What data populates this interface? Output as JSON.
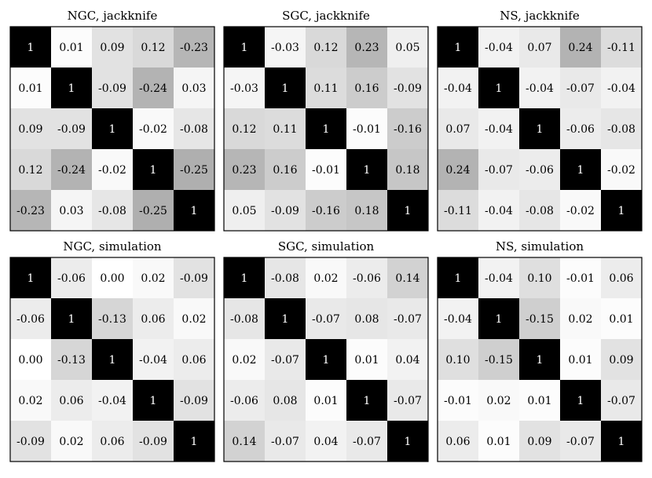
{
  "chart_data": [
    {
      "type": "heatmap",
      "title": "NGC, jackknife",
      "matrix": [
        [
          "1",
          "0.01",
          "0.09",
          "0.12",
          "-0.23"
        ],
        [
          "0.01",
          "1",
          "-0.09",
          "-0.24",
          "0.03"
        ],
        [
          "0.09",
          "-0.09",
          "1",
          "-0.02",
          "-0.08"
        ],
        [
          "0.12",
          "-0.24",
          "-0.02",
          "1",
          "-0.25"
        ],
        [
          "-0.23",
          "0.03",
          "-0.08",
          "-0.25",
          "1"
        ]
      ]
    },
    {
      "type": "heatmap",
      "title": "SGC, jackknife",
      "matrix": [
        [
          "1",
          "-0.03",
          "0.12",
          "0.23",
          "0.05"
        ],
        [
          "-0.03",
          "1",
          "0.11",
          "0.16",
          "-0.09"
        ],
        [
          "0.12",
          "0.11",
          "1",
          "-0.01",
          "-0.16"
        ],
        [
          "0.23",
          "0.16",
          "-0.01",
          "1",
          "0.18"
        ],
        [
          "0.05",
          "-0.09",
          "-0.16",
          "0.18",
          "1"
        ]
      ]
    },
    {
      "type": "heatmap",
      "title": "NS, jackknife",
      "matrix": [
        [
          "1",
          "-0.04",
          "0.07",
          "0.24",
          "-0.11"
        ],
        [
          "-0.04",
          "1",
          "-0.04",
          "-0.07",
          "-0.04"
        ],
        [
          "0.07",
          "-0.04",
          "1",
          "-0.06",
          "-0.08"
        ],
        [
          "0.24",
          "-0.07",
          "-0.06",
          "1",
          "-0.02"
        ],
        [
          "-0.11",
          "-0.04",
          "-0.08",
          "-0.02",
          "1"
        ]
      ]
    },
    {
      "type": "heatmap",
      "title": "NGC, simulation",
      "matrix": [
        [
          "1",
          "-0.06",
          "0.00",
          "0.02",
          "-0.09"
        ],
        [
          "-0.06",
          "1",
          "-0.13",
          "0.06",
          "0.02"
        ],
        [
          "0.00",
          "-0.13",
          "1",
          "-0.04",
          "0.06"
        ],
        [
          "0.02",
          "0.06",
          "-0.04",
          "1",
          "-0.09"
        ],
        [
          "-0.09",
          "0.02",
          "0.06",
          "-0.09",
          "1"
        ]
      ]
    },
    {
      "type": "heatmap",
      "title": "SGC, simulation",
      "matrix": [
        [
          "1",
          "-0.08",
          "0.02",
          "-0.06",
          "0.14"
        ],
        [
          "-0.08",
          "1",
          "-0.07",
          "0.08",
          "-0.07"
        ],
        [
          "0.02",
          "-0.07",
          "1",
          "0.01",
          "0.04"
        ],
        [
          "-0.06",
          "0.08",
          "0.01",
          "1",
          "-0.07"
        ],
        [
          "0.14",
          "-0.07",
          "0.04",
          "-0.07",
          "1"
        ]
      ]
    },
    {
      "type": "heatmap",
      "title": "NS, simulation",
      "matrix": [
        [
          "1",
          "-0.04",
          "0.10",
          "-0.01",
          "0.06"
        ],
        [
          "-0.04",
          "1",
          "-0.15",
          "0.02",
          "0.01"
        ],
        [
          "0.10",
          "-0.15",
          "1",
          "0.01",
          "0.09"
        ],
        [
          "-0.01",
          "0.02",
          "0.01",
          "1",
          "-0.07"
        ],
        [
          "0.06",
          "0.01",
          "0.09",
          "-0.07",
          "1"
        ]
      ]
    }
  ],
  "colors": {
    "diagonal": "#000000",
    "background": "#ffffff",
    "text_dark": "#000000",
    "text_light": "#ffffff"
  }
}
